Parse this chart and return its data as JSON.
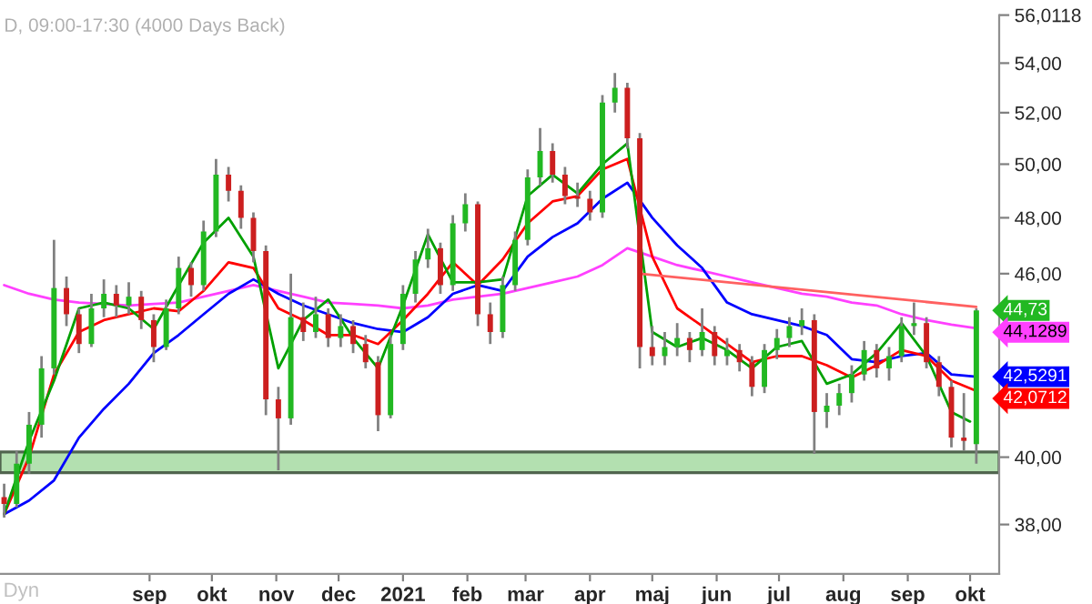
{
  "chart_data": {
    "type": "candlestick",
    "title": "D, 09:00-17:30 (4000 Days Back)",
    "annotations": [
      "Dyn"
    ],
    "x": [
      "2020-06-23",
      "2020-06-29",
      "2020-07-05",
      "2020-07-11",
      "2020-07-17",
      "2020-07-23",
      "2020-07-29",
      "2020-08-04",
      "2020-08-10",
      "2020-08-16",
      "2020-08-22",
      "2020-08-28",
      "2020-09-03",
      "2020-09-09",
      "2020-09-15",
      "2020-09-21",
      "2020-09-27",
      "2020-10-03",
      "2020-10-09",
      "2020-10-15",
      "2020-10-21",
      "2020-10-27",
      "2020-11-02",
      "2020-11-08",
      "2020-11-14",
      "2020-11-20",
      "2020-11-26",
      "2020-12-02",
      "2020-12-08",
      "2020-12-14",
      "2020-12-20",
      "2020-12-26",
      "2021-01-01",
      "2021-01-07",
      "2021-01-13",
      "2021-01-19",
      "2021-01-25",
      "2021-01-31",
      "2021-02-06",
      "2021-02-12",
      "2021-02-18",
      "2021-02-24",
      "2021-03-02",
      "2021-03-08",
      "2021-03-14",
      "2021-03-20",
      "2021-03-26",
      "2021-04-01",
      "2021-04-07",
      "2021-04-13",
      "2021-04-19",
      "2021-04-25",
      "2021-05-01",
      "2021-05-07",
      "2021-05-13",
      "2021-05-19",
      "2021-05-25",
      "2021-05-31",
      "2021-06-06",
      "2021-06-12",
      "2021-06-18",
      "2021-06-24",
      "2021-06-30",
      "2021-07-06",
      "2021-07-12",
      "2021-07-18",
      "2021-07-24",
      "2021-07-30",
      "2021-08-05",
      "2021-08-11",
      "2021-08-17",
      "2021-08-23",
      "2021-08-29",
      "2021-09-04",
      "2021-09-10",
      "2021-09-16",
      "2021-09-22",
      "2021-09-28",
      "2021-10-04"
    ],
    "ohlc": [
      [
        38.8,
        39.2,
        38.2,
        38.6
      ],
      [
        38.6,
        40.2,
        38.5,
        39.8
      ],
      [
        39.8,
        41.4,
        39.5,
        41.0
      ],
      [
        41.0,
        43.2,
        40.6,
        42.8
      ],
      [
        42.8,
        47.2,
        42.6,
        45.5
      ],
      [
        45.5,
        45.9,
        44.2,
        44.6
      ],
      [
        44.6,
        44.8,
        43.3,
        43.6
      ],
      [
        43.6,
        45.3,
        43.5,
        44.8
      ],
      [
        44.8,
        45.8,
        44.5,
        45.3
      ],
      [
        45.3,
        45.6,
        44.5,
        44.9
      ],
      [
        44.9,
        45.7,
        44.6,
        45.2
      ],
      [
        45.2,
        45.4,
        44.1,
        44.4
      ],
      [
        44.4,
        44.6,
        43.0,
        43.5
      ],
      [
        43.5,
        45.1,
        43.4,
        44.8
      ],
      [
        44.8,
        46.6,
        44.6,
        46.2
      ],
      [
        46.2,
        46.4,
        45.2,
        45.6
      ],
      [
        45.6,
        47.9,
        45.4,
        47.5
      ],
      [
        47.5,
        50.2,
        47.3,
        49.6
      ],
      [
        49.6,
        49.9,
        48.6,
        49.0
      ],
      [
        49.0,
        49.2,
        47.6,
        48.0
      ],
      [
        48.0,
        48.2,
        46.4,
        46.8
      ],
      [
        46.8,
        47.0,
        41.3,
        41.8
      ],
      [
        41.8,
        42.2,
        39.6,
        41.2
      ],
      [
        41.2,
        46.0,
        41.0,
        44.5
      ],
      [
        44.5,
        45.0,
        43.7,
        44.0
      ],
      [
        44.0,
        45.2,
        43.8,
        44.6
      ],
      [
        44.6,
        44.8,
        43.5,
        43.8
      ],
      [
        43.8,
        44.6,
        43.5,
        44.2
      ],
      [
        44.2,
        44.4,
        43.3,
        43.6
      ],
      [
        43.6,
        43.9,
        42.8,
        43.0
      ],
      [
        43.0,
        43.2,
        40.8,
        41.3
      ],
      [
        41.3,
        43.9,
        41.2,
        43.6
      ],
      [
        43.6,
        45.6,
        43.4,
        45.3
      ],
      [
        45.3,
        46.8,
        45.0,
        46.5
      ],
      [
        46.5,
        47.6,
        46.2,
        46.9
      ],
      [
        46.9,
        47.1,
        45.3,
        45.6
      ],
      [
        45.6,
        48.1,
        45.4,
        47.8
      ],
      [
        47.8,
        48.9,
        47.5,
        48.5
      ],
      [
        48.5,
        48.6,
        44.2,
        44.6
      ],
      [
        44.6,
        45.0,
        43.6,
        44.0
      ],
      [
        44.0,
        45.9,
        43.8,
        45.6
      ],
      [
        45.6,
        47.5,
        45.4,
        47.2
      ],
      [
        47.2,
        49.8,
        47.0,
        49.5
      ],
      [
        49.5,
        51.4,
        49.2,
        50.5
      ],
      [
        50.5,
        50.8,
        49.3,
        49.6
      ],
      [
        49.6,
        49.9,
        48.5,
        48.8
      ],
      [
        48.8,
        49.3,
        48.4,
        48.7
      ],
      [
        48.7,
        49.0,
        47.9,
        48.2
      ],
      [
        48.2,
        52.7,
        48.0,
        52.4
      ],
      [
        52.4,
        53.6,
        52.0,
        53.0
      ],
      [
        53.0,
        53.2,
        50.6,
        51.0
      ],
      [
        51.0,
        51.2,
        42.8,
        43.5
      ],
      [
        43.5,
        44.2,
        42.9,
        43.2
      ],
      [
        43.2,
        44.0,
        42.9,
        43.5
      ],
      [
        43.5,
        44.3,
        43.2,
        43.8
      ],
      [
        43.8,
        44.0,
        43.0,
        43.4
      ],
      [
        43.4,
        44.8,
        43.2,
        44.0
      ],
      [
        44.0,
        44.2,
        42.9,
        43.2
      ],
      [
        43.2,
        43.8,
        42.9,
        43.4
      ],
      [
        43.4,
        43.6,
        42.7,
        43.0
      ],
      [
        43.0,
        43.2,
        41.9,
        42.2
      ],
      [
        42.2,
        43.6,
        42.0,
        43.4
      ],
      [
        43.4,
        44.1,
        43.1,
        43.8
      ],
      [
        43.8,
        44.5,
        43.5,
        44.2
      ],
      [
        44.2,
        44.8,
        43.9,
        44.4
      ],
      [
        44.4,
        44.6,
        40.1,
        41.4
      ],
      [
        41.4,
        42.0,
        40.9,
        41.6
      ],
      [
        41.6,
        42.3,
        41.3,
        42.0
      ],
      [
        42.0,
        42.9,
        41.7,
        42.6
      ],
      [
        42.6,
        43.7,
        42.4,
        43.4
      ],
      [
        43.4,
        43.6,
        42.5,
        42.8
      ],
      [
        42.8,
        43.5,
        42.4,
        43.2
      ],
      [
        43.2,
        44.5,
        43.0,
        44.2
      ],
      [
        44.2,
        45.0,
        43.9,
        44.3
      ],
      [
        44.3,
        44.5,
        42.8,
        43.0
      ],
      [
        43.0,
        43.2,
        41.9,
        42.2
      ],
      [
        42.2,
        42.4,
        40.3,
        40.6
      ],
      [
        40.6,
        42.0,
        40.2,
        40.5
      ],
      [
        40.4,
        44.8,
        39.8,
        44.73
      ]
    ],
    "value_labels": [
      null,
      null,
      null,
      null,
      null,
      null,
      null,
      null,
      null,
      null,
      null,
      null,
      null,
      null,
      null,
      null,
      null,
      null,
      null,
      null,
      null,
      null,
      null,
      null,
      null,
      null,
      null,
      null,
      null,
      null,
      null,
      null,
      null,
      null,
      null,
      null,
      null,
      null,
      null,
      null,
      null,
      null,
      null,
      null,
      null,
      null,
      null,
      null,
      null,
      null,
      null,
      null,
      null,
      null,
      null,
      null,
      null,
      null,
      null,
      null,
      null,
      null,
      null,
      null,
      null,
      null,
      null,
      null,
      null,
      null,
      null,
      null,
      null,
      null,
      null,
      null,
      null,
      null,
      "44,73"
    ],
    "series": [
      {
        "type": "line",
        "color": "#ff40ff",
        "x": [
          "2020-06-23",
          "2020-07-05",
          "2020-07-17",
          "2020-07-29",
          "2020-08-10",
          "2020-08-22",
          "2020-09-03",
          "2020-09-15",
          "2020-09-27",
          "2020-10-09",
          "2020-10-21",
          "2020-11-02",
          "2020-11-14",
          "2020-11-26",
          "2020-12-08",
          "2020-12-20",
          "2021-01-01",
          "2021-01-13",
          "2021-01-25",
          "2021-02-06",
          "2021-02-18",
          "2021-03-02",
          "2021-03-14",
          "2021-03-26",
          "2021-04-07",
          "2021-04-19",
          "2021-05-01",
          "2021-05-13",
          "2021-05-25",
          "2021-06-06",
          "2021-06-18",
          "2021-06-30",
          "2021-07-12",
          "2021-07-24",
          "2021-08-05",
          "2021-08-17",
          "2021-08-29",
          "2021-09-10",
          "2021-09-22",
          "2021-10-04"
        ],
        "values": [
          45.6,
          45.3,
          45.1,
          45.0,
          44.95,
          44.9,
          44.95,
          45.0,
          45.2,
          45.4,
          45.6,
          45.4,
          45.2,
          45.0,
          44.95,
          44.9,
          44.8,
          44.9,
          45.1,
          45.2,
          45.3,
          45.5,
          45.7,
          45.9,
          46.3,
          46.9,
          46.6,
          46.3,
          46.1,
          45.9,
          45.7,
          45.5,
          45.3,
          45.2,
          45.0,
          44.9,
          44.6,
          44.4,
          44.25,
          44.1289
        ],
        "value_labels": [
          null,
          null,
          null,
          null,
          null,
          null,
          null,
          null,
          null,
          null,
          null,
          null,
          null,
          null,
          null,
          null,
          null,
          null,
          null,
          null,
          null,
          null,
          null,
          null,
          null,
          null,
          null,
          null,
          null,
          null,
          null,
          null,
          null,
          null,
          null,
          null,
          null,
          null,
          null,
          "44,1289"
        ]
      },
      {
        "type": "line",
        "color": "#0000ff",
        "x": [
          "2020-06-23",
          "2020-07-05",
          "2020-07-17",
          "2020-07-29",
          "2020-08-10",
          "2020-08-22",
          "2020-09-03",
          "2020-09-15",
          "2020-09-27",
          "2020-10-09",
          "2020-10-21",
          "2020-11-02",
          "2020-11-14",
          "2020-11-26",
          "2020-12-08",
          "2020-12-20",
          "2021-01-01",
          "2021-01-13",
          "2021-01-25",
          "2021-02-06",
          "2021-02-18",
          "2021-03-02",
          "2021-03-14",
          "2021-03-26",
          "2021-04-07",
          "2021-04-19",
          "2021-05-01",
          "2021-05-13",
          "2021-05-25",
          "2021-06-06",
          "2021-06-18",
          "2021-06-30",
          "2021-07-12",
          "2021-07-24",
          "2021-08-05",
          "2021-08-17",
          "2021-08-29",
          "2021-09-10",
          "2021-09-22",
          "2021-10-04"
        ],
        "values": [
          38.3,
          38.7,
          39.3,
          40.6,
          41.5,
          42.3,
          43.3,
          43.9,
          44.6,
          45.3,
          45.8,
          45.3,
          44.9,
          44.6,
          44.3,
          44.1,
          44.0,
          44.5,
          45.3,
          45.6,
          45.4,
          46.6,
          47.3,
          47.8,
          48.7,
          49.3,
          48.0,
          47.0,
          46.2,
          45.0,
          44.6,
          44.4,
          44.2,
          43.9,
          43.1,
          43.0,
          43.2,
          43.3,
          42.6,
          42.5291
        ],
        "value_labels": [
          null,
          null,
          null,
          null,
          null,
          null,
          null,
          null,
          null,
          null,
          null,
          null,
          null,
          null,
          null,
          null,
          null,
          null,
          null,
          null,
          null,
          null,
          null,
          null,
          null,
          null,
          null,
          null,
          null,
          null,
          null,
          null,
          null,
          null,
          null,
          null,
          null,
          null,
          null,
          "42,5291"
        ]
      },
      {
        "type": "line",
        "color": "#ff0000",
        "x": [
          "2020-06-23",
          "2020-07-05",
          "2020-07-17",
          "2020-07-29",
          "2020-08-10",
          "2020-08-22",
          "2020-09-03",
          "2020-09-15",
          "2020-09-27",
          "2020-10-09",
          "2020-10-21",
          "2020-11-02",
          "2020-11-14",
          "2020-11-26",
          "2020-12-08",
          "2020-12-20",
          "2021-01-01",
          "2021-01-13",
          "2021-01-25",
          "2021-02-06",
          "2021-02-18",
          "2021-03-02",
          "2021-03-14",
          "2021-03-26",
          "2021-04-07",
          "2021-04-19",
          "2021-05-01",
          "2021-05-13",
          "2021-05-25",
          "2021-06-06",
          "2021-06-18",
          "2021-06-30",
          "2021-07-12",
          "2021-07-24",
          "2021-08-05",
          "2021-08-17",
          "2021-08-29",
          "2021-09-10",
          "2021-09-22",
          "2021-10-04"
        ],
        "values": [
          38.3,
          40.0,
          42.6,
          44.0,
          44.4,
          44.6,
          44.8,
          44.7,
          45.4,
          46.4,
          46.2,
          44.8,
          44.4,
          43.9,
          43.9,
          43.6,
          44.4,
          45.3,
          46.4,
          45.6,
          46.5,
          47.8,
          48.6,
          48.8,
          49.8,
          50.2,
          46.6,
          44.8,
          44.2,
          43.6,
          43.0,
          43.2,
          43.2,
          42.9,
          42.5,
          42.9,
          43.4,
          43.2,
          42.4,
          42.0712
        ],
        "value_labels": [
          null,
          null,
          null,
          null,
          null,
          null,
          null,
          null,
          null,
          null,
          null,
          null,
          null,
          null,
          null,
          null,
          null,
          null,
          null,
          null,
          null,
          null,
          null,
          null,
          null,
          null,
          null,
          null,
          null,
          null,
          null,
          null,
          null,
          null,
          null,
          null,
          null,
          null,
          null,
          "42,0712"
        ]
      },
      {
        "type": "line",
        "color": "#00a000",
        "x": [
          "2020-06-23",
          "2020-07-05",
          "2020-07-17",
          "2020-07-29",
          "2020-08-10",
          "2020-08-22",
          "2020-09-03",
          "2020-09-15",
          "2020-09-27",
          "2020-10-09",
          "2020-10-21",
          "2020-11-02",
          "2020-11-14",
          "2020-11-26",
          "2020-12-08",
          "2020-12-20",
          "2021-01-01",
          "2021-01-13",
          "2021-01-25",
          "2021-02-06",
          "2021-02-18",
          "2021-03-02",
          "2021-03-14",
          "2021-03-26",
          "2021-04-07",
          "2021-04-19",
          "2021-05-01",
          "2021-05-13",
          "2021-05-25",
          "2021-06-06",
          "2021-06-18",
          "2021-06-30",
          "2021-07-12",
          "2021-07-24",
          "2021-08-05",
          "2021-08-17",
          "2021-08-29",
          "2021-09-10",
          "2021-09-22",
          "2021-10-01"
        ],
        "values": [
          38.3,
          40.5,
          42.4,
          44.8,
          45.0,
          44.8,
          44.1,
          45.6,
          47.1,
          48.0,
          46.6,
          42.8,
          44.4,
          45.1,
          43.8,
          42.8,
          44.9,
          47.4,
          45.7,
          45.7,
          45.8,
          48.8,
          49.6,
          48.9,
          50.0,
          50.8,
          44.0,
          43.5,
          43.8,
          43.4,
          42.8,
          43.5,
          43.7,
          42.3,
          42.6,
          43.3,
          44.3,
          43.2,
          41.4,
          41.1
        ]
      },
      {
        "type": "line",
        "color": "#ff6060",
        "x": [
          "2021-04-25",
          "2021-10-04"
        ],
        "values": [
          46.0,
          44.85
        ]
      }
    ],
    "bands": [
      {
        "axis": "y",
        "from": 39.53,
        "to": 40.16,
        "color": "#b3e0b0"
      }
    ],
    "log": "y",
    "legend": false,
    "grid": false,
    "xlim": [
      "2020-06-21",
      "2021-10-15"
    ],
    "xticks": [
      {
        "value": "2020-09-01",
        "label": "sep"
      },
      {
        "value": "2020-10-01",
        "label": "okt"
      },
      {
        "value": "2020-11-01",
        "label": "nov"
      },
      {
        "value": "2020-12-01",
        "label": "dec"
      },
      {
        "value": "2021-01-01",
        "label": "2021"
      },
      {
        "value": "2021-02-01",
        "label": "feb"
      },
      {
        "value": "2021-03-01",
        "label": "mar"
      },
      {
        "value": "2021-04-01",
        "label": "apr"
      },
      {
        "value": "2021-05-01",
        "label": "maj"
      },
      {
        "value": "2021-06-01",
        "label": "jun"
      },
      {
        "value": "2021-07-01",
        "label": "jul"
      },
      {
        "value": "2021-08-01",
        "label": "aug"
      },
      {
        "value": "2021-09-01",
        "label": "sep"
      },
      {
        "value": "2021-10-01",
        "label": "okt"
      }
    ],
    "ylim": [
      36.6,
      56.0118
    ],
    "yticks": [
      {
        "value": 38,
        "label": "38,00"
      },
      {
        "value": 40,
        "label": "40,00"
      },
      {
        "value": 42,
        "label": null
      },
      {
        "value": 44,
        "label": null
      },
      {
        "value": 46,
        "label": "46,00"
      },
      {
        "value": 48,
        "label": "48,00"
      },
      {
        "value": 50,
        "label": "50,00"
      },
      {
        "value": 52,
        "label": "52,00"
      },
      {
        "value": 54,
        "label": "54,00"
      },
      {
        "value": 56.0118,
        "label": "56,0118"
      }
    ]
  }
}
